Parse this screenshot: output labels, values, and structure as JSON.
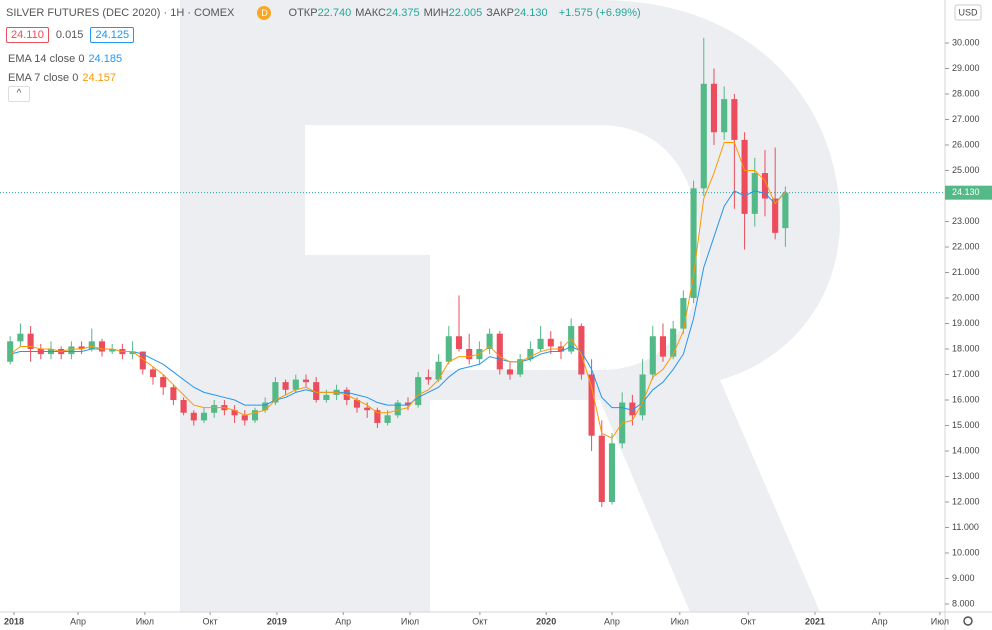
{
  "chart_data": {
    "type": "candlestick",
    "header": {
      "symbol": "SILVER FUTURES (DEC 2020) · 1H · COMEX",
      "badge": "D",
      "stats": [
        {
          "label": "ОТКР",
          "value": "22.740"
        },
        {
          "label": "МАКС",
          "value": "24.375"
        },
        {
          "label": "МИН",
          "value": "22.005"
        },
        {
          "label": "ЗАКР",
          "value": "24.130"
        }
      ],
      "change": "+1.575 (+6.99%)",
      "bid": "24.110",
      "spread": "0.015",
      "ask": "24.125"
    },
    "currency": "USD",
    "x": [
      2,
      4,
      6,
      8,
      10,
      12,
      14,
      16,
      18,
      20,
      22,
      24,
      26,
      28,
      30,
      32,
      34,
      36,
      38,
      40,
      42,
      44,
      46,
      48,
      50,
      52,
      54,
      56,
      58,
      60,
      62,
      64,
      66,
      68,
      70,
      72,
      74,
      76,
      78,
      80,
      82,
      84,
      86,
      88,
      90,
      92,
      94,
      96,
      98,
      100,
      102,
      104,
      106,
      108,
      110,
      112,
      114,
      116,
      118,
      120,
      122,
      124,
      126,
      128,
      130,
      132,
      134,
      136,
      138,
      140,
      142,
      144,
      146,
      148,
      150,
      152,
      154
    ],
    "open": [
      17.5,
      18.3,
      18.6,
      18.0,
      17.8,
      18.0,
      17.8,
      18.1,
      18.0,
      18.3,
      17.9,
      18.0,
      17.8,
      17.9,
      17.2,
      16.9,
      16.5,
      16.0,
      15.5,
      15.2,
      15.5,
      15.8,
      15.6,
      15.4,
      15.2,
      15.6,
      15.9,
      16.7,
      16.4,
      16.8,
      16.7,
      16.0,
      16.2,
      16.4,
      16.0,
      15.7,
      15.6,
      15.1,
      15.4,
      15.9,
      15.8,
      16.9,
      16.8,
      17.5,
      18.5,
      18.0,
      17.6,
      18.0,
      18.6,
      17.2,
      17.0,
      17.6,
      18.0,
      18.4,
      18.1,
      17.9,
      18.9,
      17.0,
      14.6,
      12.0,
      14.3,
      15.9,
      15.4,
      17.0,
      18.5,
      17.7,
      18.8,
      20.0,
      24.3,
      28.4,
      26.5,
      27.8,
      26.2,
      23.3,
      24.9,
      23.9,
      22.74
    ],
    "high": [
      18.5,
      19.0,
      18.9,
      18.2,
      18.3,
      18.1,
      18.3,
      18.3,
      18.8,
      18.4,
      18.2,
      18.2,
      18.3,
      17.9,
      17.3,
      17.0,
      16.6,
      16.1,
      15.6,
      15.7,
      16.0,
      16.0,
      15.8,
      15.6,
      15.7,
      16.1,
      16.9,
      16.8,
      17.0,
      17.0,
      16.9,
      16.4,
      16.6,
      16.5,
      16.1,
      15.9,
      15.7,
      15.6,
      16.0,
      16.1,
      17.1,
      17.2,
      17.8,
      18.9,
      20.1,
      18.6,
      18.3,
      18.8,
      18.7,
      17.5,
      17.8,
      18.3,
      18.9,
      18.7,
      18.3,
      19.2,
      19.0,
      17.6,
      15.2,
      14.7,
      16.3,
      16.2,
      17.6,
      18.9,
      19.0,
      19.1,
      20.3,
      24.6,
      30.2,
      29.0,
      28.3,
      28.0,
      26.5,
      25.5,
      25.8,
      25.9,
      24.375
    ],
    "low": [
      17.4,
      18.1,
      17.5,
      17.6,
      17.6,
      17.6,
      17.6,
      17.8,
      17.9,
      17.7,
      17.8,
      17.6,
      17.6,
      17.0,
      16.6,
      16.2,
      15.8,
      15.4,
      15.0,
      15.1,
      15.3,
      15.4,
      15.1,
      15.0,
      15.1,
      15.5,
      15.8,
      16.2,
      16.3,
      16.5,
      15.9,
      15.9,
      16.0,
      15.8,
      15.5,
      15.3,
      14.9,
      15.0,
      15.3,
      15.6,
      15.7,
      16.6,
      16.7,
      17.4,
      17.9,
      17.4,
      17.4,
      17.8,
      17.0,
      16.8,
      16.9,
      17.5,
      17.9,
      17.8,
      17.6,
      17.8,
      16.8,
      14.0,
      11.8,
      11.9,
      14.1,
      15.0,
      15.2,
      16.8,
      17.5,
      17.6,
      18.6,
      19.8,
      24.0,
      26.0,
      26.2,
      23.5,
      21.9,
      22.8,
      23.2,
      22.3,
      22.005
    ],
    "close": [
      18.3,
      18.6,
      18.0,
      17.8,
      18.0,
      17.8,
      18.1,
      18.0,
      18.3,
      17.9,
      18.0,
      17.8,
      17.9,
      17.2,
      16.9,
      16.5,
      16.0,
      15.5,
      15.2,
      15.5,
      15.8,
      15.6,
      15.4,
      15.2,
      15.6,
      15.9,
      16.7,
      16.4,
      16.8,
      16.7,
      16.0,
      16.2,
      16.4,
      16.0,
      15.7,
      15.6,
      15.1,
      15.4,
      15.9,
      15.8,
      16.9,
      16.8,
      17.5,
      18.5,
      18.0,
      17.6,
      18.0,
      18.6,
      17.2,
      17.0,
      17.6,
      18.0,
      18.4,
      18.1,
      17.9,
      18.9,
      17.0,
      14.6,
      12.0,
      14.3,
      15.9,
      15.4,
      17.0,
      18.5,
      17.7,
      18.8,
      20.0,
      24.3,
      28.4,
      26.5,
      27.8,
      26.2,
      23.3,
      24.9,
      23.9,
      22.555,
      24.13
    ],
    "up_color": "#53b987",
    "down_color": "#eb4d5c",
    "series": [
      {
        "name": "EMA 14 close 0",
        "color": "#2196f3",
        "last_label": "24.185",
        "values": [
          17.8,
          17.9,
          17.9,
          17.9,
          17.9,
          17.9,
          17.9,
          17.9,
          18.0,
          18.0,
          18.0,
          17.9,
          17.9,
          17.8,
          17.6,
          17.4,
          17.1,
          16.8,
          16.5,
          16.3,
          16.2,
          16.1,
          16.0,
          15.8,
          15.8,
          15.8,
          16.0,
          16.1,
          16.3,
          16.4,
          16.3,
          16.3,
          16.3,
          16.3,
          16.2,
          16.1,
          15.9,
          15.8,
          15.8,
          15.8,
          16.1,
          16.3,
          16.5,
          16.9,
          17.2,
          17.3,
          17.4,
          17.7,
          17.6,
          17.5,
          17.5,
          17.6,
          17.8,
          17.9,
          17.9,
          18.1,
          17.9,
          17.2,
          16.1,
          15.7,
          15.7,
          15.6,
          15.9,
          16.4,
          16.7,
          17.2,
          17.8,
          19.2,
          21.2,
          22.4,
          23.6,
          24.2,
          24.0,
          24.2,
          24.1,
          23.7,
          24.185
        ]
      },
      {
        "name": "EMA 7 close 0",
        "color": "#ff9800",
        "last_label": "24.157",
        "values": [
          17.8,
          18.1,
          18.1,
          18.0,
          18.0,
          17.9,
          18.0,
          18.0,
          18.1,
          18.0,
          18.0,
          17.9,
          17.9,
          17.6,
          17.3,
          17.0,
          16.6,
          16.2,
          15.8,
          15.7,
          15.7,
          15.7,
          15.6,
          15.4,
          15.5,
          15.6,
          16.0,
          16.2,
          16.4,
          16.5,
          16.3,
          16.3,
          16.3,
          16.2,
          16.0,
          15.8,
          15.5,
          15.5,
          15.6,
          15.7,
          16.2,
          16.4,
          16.8,
          17.5,
          17.7,
          17.7,
          17.8,
          18.1,
          17.7,
          17.5,
          17.5,
          17.7,
          17.9,
          18.0,
          18.0,
          18.4,
          17.8,
          16.5,
          14.7,
          14.5,
          15.1,
          15.2,
          15.9,
          16.9,
          17.2,
          17.8,
          18.7,
          20.9,
          23.9,
          24.9,
          26.1,
          26.1,
          25.0,
          25.0,
          24.6,
          23.7,
          24.157
        ]
      }
    ],
    "last_price": {
      "value": 24.13,
      "label": "24.130"
    },
    "xlim": [
      0,
      185.3
    ],
    "xticks": [
      {
        "value": 2.75,
        "label": "2018"
      },
      {
        "value": 15.3,
        "label": "Апр"
      },
      {
        "value": 28.4,
        "label": "Июл"
      },
      {
        "value": 41.2,
        "label": "Окт"
      },
      {
        "value": 54.3,
        "label": "2019"
      },
      {
        "value": 67.3,
        "label": "Апр"
      },
      {
        "value": 80.4,
        "label": "Июл"
      },
      {
        "value": 94.1,
        "label": "Окт"
      },
      {
        "value": 107.1,
        "label": "2020"
      },
      {
        "value": 120,
        "label": "Апр"
      },
      {
        "value": 133.3,
        "label": "Июл"
      },
      {
        "value": 146.7,
        "label": "Окт"
      },
      {
        "value": 159.8,
        "label": "2021"
      },
      {
        "value": 172.5,
        "label": "Апр"
      },
      {
        "value": 184.3,
        "label": "Июл"
      }
    ],
    "ylim": [
      7.686,
      31.686
    ],
    "yticks": [
      {
        "value": 8,
        "label": "8.000"
      },
      {
        "value": 9,
        "label": "9.000"
      },
      {
        "value": 10,
        "label": "10.000"
      },
      {
        "value": 11,
        "label": "11.000"
      },
      {
        "value": 12,
        "label": "12.000"
      },
      {
        "value": 13,
        "label": "13.000"
      },
      {
        "value": 14,
        "label": "14.000"
      },
      {
        "value": 15,
        "label": "15.000"
      },
      {
        "value": 16,
        "label": "16.000"
      },
      {
        "value": 17,
        "label": "17.000"
      },
      {
        "value": 18,
        "label": "18.000"
      },
      {
        "value": 19,
        "label": "19.000"
      },
      {
        "value": 20,
        "label": "20.000"
      },
      {
        "value": 21,
        "label": "21.000"
      },
      {
        "value": 22,
        "label": "22.000"
      },
      {
        "value": 23,
        "label": "23.000"
      },
      {
        "value": 24,
        "label": "24.000"
      },
      {
        "value": 25,
        "label": "25.000"
      },
      {
        "value": 26,
        "label": "26.000"
      },
      {
        "value": 27,
        "label": "27.000"
      },
      {
        "value": 28,
        "label": "28.000"
      },
      {
        "value": 29,
        "label": "29.000"
      },
      {
        "value": 30,
        "label": "30.000"
      }
    ],
    "grid": false
  }
}
